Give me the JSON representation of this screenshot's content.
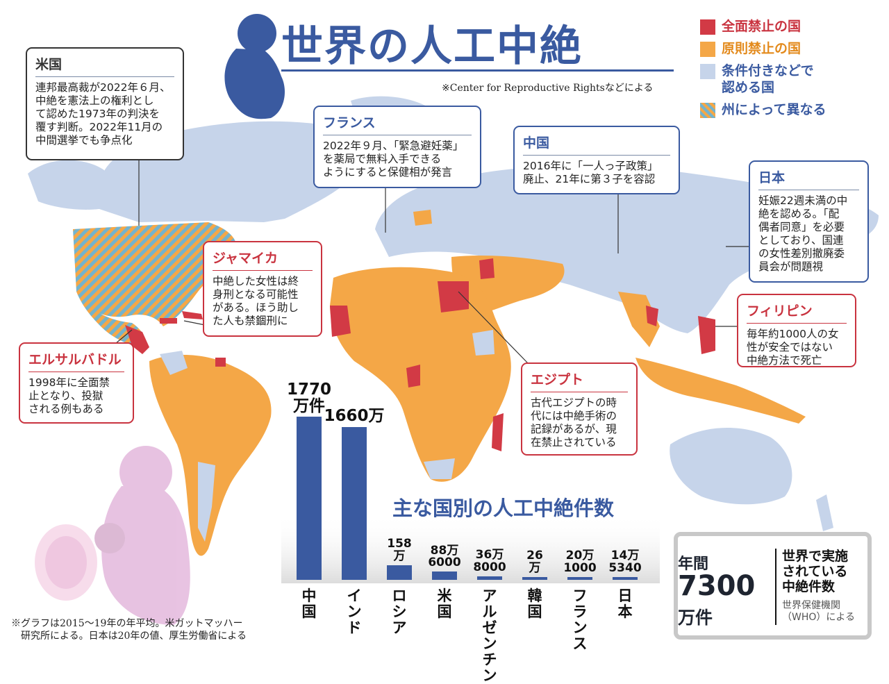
{
  "title": "世界の人工中絶",
  "source_note": "※Center for Reproductive Rightsなどによる",
  "colors": {
    "full_ban": "#d23a45",
    "principle_ban": "#f4a747",
    "conditional": "#c6d4ea",
    "state_dependent_stripe_a": "#f4a747",
    "state_dependent_stripe_b": "#74b3cc",
    "accent_blue": "#3a5aa0",
    "accent_red": "#c9333f"
  },
  "legend": [
    {
      "label": "全面禁止の国",
      "color": "#d23a45",
      "icon": "red-square"
    },
    {
      "label": "原則禁止の国",
      "color": "#f4a747",
      "icon": "orange-square"
    },
    {
      "label": "条件付きなどで\n認める国",
      "color": "#c6d4ea",
      "icon": "lightblue-square"
    },
    {
      "label": "州によって異なる",
      "color": "striped",
      "icon": "striped-square"
    }
  ],
  "callouts": {
    "us": {
      "heading": "米国",
      "text": "連邦最高裁が2022年６月、\n中絶を憲法上の権利とし\nて認めた1973年の判決を\n覆す判断。2022年11月の\n中間選挙でも争点化"
    },
    "france": {
      "heading": "フランス",
      "text": "2022年９月、「緊急避妊薬」\nを薬局で無料入手できる\nようにすると保健相が発言"
    },
    "china": {
      "heading": "中国",
      "text": "2016年に「一人っ子政策」\n廃止、21年に第３子を容認"
    },
    "japan": {
      "heading": "日本",
      "text": "妊娠22週未満の中\n絶を認める。「配\n偶者同意」を必要\nとしており、国連\nの女性差別撤廃委\n員会が問題視"
    },
    "jamaica": {
      "heading": "ジャマイカ",
      "text": "中絶した女性は終\n身刑となる可能性\nがある。ほう助し\nた人も禁錮刑に"
    },
    "philippines": {
      "heading": "フィリピン",
      "text": "毎年約1000人の女\n性が安全ではない\n中絶方法で死亡"
    },
    "el_salvador": {
      "heading": "エルサルバドル",
      "text": "1998年に全面禁\n止となり、投獄\nされる例もある"
    },
    "egypt": {
      "heading": "エジプト",
      "text": "古代エジプトの時\n代には中絶手術の\n記録があるが、現\n在禁止されている"
    }
  },
  "chart_title": "主な国別の人工中絶件数",
  "chart_data": {
    "type": "bar",
    "title": "主な国別の人工中絶件数",
    "categories": [
      "中国",
      "インド",
      "ロシア",
      "米国",
      "アルゼンチン",
      "韓国",
      "フランス",
      "日本"
    ],
    "category_labels": [
      "中\n国",
      "イ\nン\nド",
      "ロ\nシ\nア",
      "米\n国",
      "ア\nル\nゼ\nン\nチ\nン",
      "韓\n国",
      "フ\nラ\nン\nス",
      "日\n本"
    ],
    "values": [
      17700000,
      16600000,
      1580000,
      886000,
      368000,
      260000,
      201000,
      145340
    ],
    "value_labels": [
      "1770\n万件",
      "1660万",
      "158\n万",
      "88万\n6000",
      "36万\n8000",
      "26\n万",
      "20万\n1000",
      "14万\n5340"
    ],
    "unit": "件",
    "ylim": [
      0,
      17700000
    ]
  },
  "footnote": "※グラフは2015～19年の年平均。米ガットマッハー\n　研究所による。日本は20年の値、厚生労働省による",
  "stat_box": {
    "label_top": "年間",
    "value": "7300",
    "unit": "万件",
    "description": "世界で実施\nされている\n中絶件数",
    "source": "世界保健機関\n（WHO）による"
  }
}
